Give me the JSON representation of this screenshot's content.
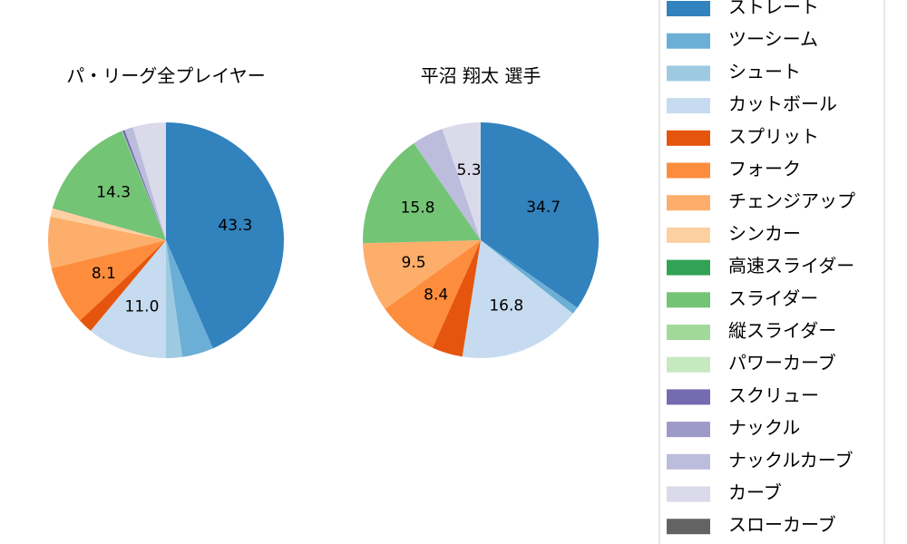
{
  "chart_data": [
    {
      "type": "pie",
      "title": "パ・リーグ全プレイヤー",
      "categories": [
        "ストレート",
        "ツーシーム",
        "シュート",
        "カットボール",
        "スプリット",
        "フォーク",
        "チェンジアップ",
        "シンカー",
        "高速スライダー",
        "スライダー",
        "縦スライダー",
        "パワーカーブ",
        "スクリュー",
        "ナックル",
        "ナックルカーブ",
        "カーブ",
        "スローカーブ"
      ],
      "colors": [
        "#3182bd",
        "#6baed6",
        "#9ecae1",
        "#c6dbef",
        "#e6550d",
        "#fd8d3c",
        "#fdae6b",
        "#fdd0a2",
        "#31a354",
        "#74c476",
        "#a1d99b",
        "#c7e9c0",
        "#756bb1",
        "#9e9ac8",
        "#bcbddc",
        "#dadaeb",
        "#636363"
      ],
      "values": [
        43.3,
        4.3,
        2.2,
        11.0,
        2.0,
        8.1,
        7.0,
        1.2,
        0.1,
        14.3,
        0.1,
        0,
        0.3,
        0,
        1.2,
        4.5,
        0
      ],
      "value_labels": [
        "43.3",
        null,
        null,
        "11.0",
        null,
        "8.1",
        null,
        null,
        null,
        "14.3",
        null,
        null,
        null,
        null,
        null,
        null,
        null
      ]
    },
    {
      "type": "pie",
      "title": "平沼 翔太  選手",
      "categories": [
        "ストレート",
        "ツーシーム",
        "シュート",
        "カットボール",
        "スプリット",
        "フォーク",
        "チェンジアップ",
        "シンカー",
        "高速スライダー",
        "スライダー",
        "縦スライダー",
        "パワーカーブ",
        "スクリュー",
        "ナックル",
        "ナックルカーブ",
        "カーブ",
        "スローカーブ"
      ],
      "colors": [
        "#3182bd",
        "#6baed6",
        "#9ecae1",
        "#c6dbef",
        "#e6550d",
        "#fd8d3c",
        "#fdae6b",
        "#fdd0a2",
        "#31a354",
        "#74c476",
        "#a1d99b",
        "#c7e9c0",
        "#756bb1",
        "#9e9ac8",
        "#bcbddc",
        "#dadaeb",
        "#636363"
      ],
      "values": [
        34.7,
        1.0,
        0,
        16.8,
        4.2,
        8.4,
        9.5,
        0,
        0,
        15.8,
        0,
        0,
        0,
        0,
        4.3,
        5.3,
        0
      ],
      "value_labels": [
        "34.7",
        null,
        null,
        "16.8",
        null,
        "8.4",
        "9.5",
        null,
        null,
        "15.8",
        null,
        null,
        null,
        null,
        null,
        "5.3",
        null
      ]
    }
  ]
}
